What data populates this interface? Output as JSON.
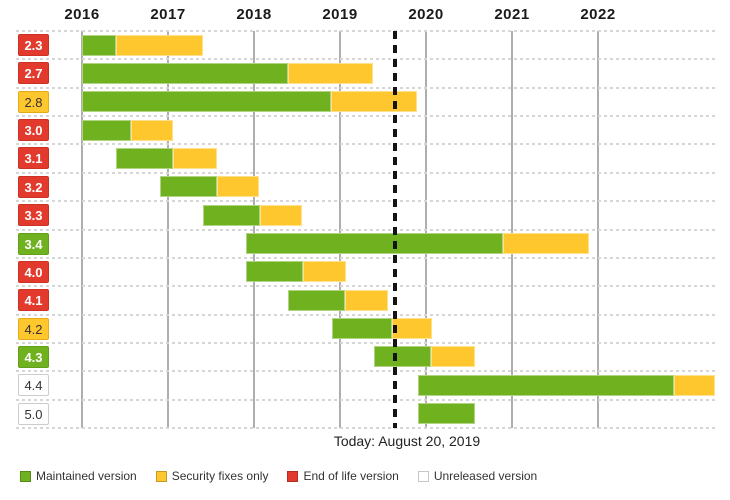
{
  "chart_data": {
    "type": "gantt",
    "description": "Software version support timeline",
    "x_axis": {
      "tick_years": [
        "2016",
        "2017",
        "2018",
        "2019",
        "2020",
        "2021",
        "2022"
      ],
      "range_start": 2015.23,
      "range_end": 2023.37,
      "grid": "solid vertical year lines, dashed horizontal row separators"
    },
    "today": {
      "label": "Today: August 20, 2019",
      "year": 2019.64
    },
    "status_colors": {
      "maintained": "#6fb11e",
      "security": "#ffc72e",
      "eol": "#e23b2e",
      "unreleased": "#ffffff"
    },
    "legend": [
      {
        "key": "maintained",
        "label": "Maintained version"
      },
      {
        "key": "security",
        "label": "Security fixes only"
      },
      {
        "key": "eol",
        "label": "End of life version"
      },
      {
        "key": "unreleased",
        "label": "Unreleased version"
      }
    ],
    "rows": [
      {
        "version": "2.3",
        "status": "eol",
        "maintained": [
          2016.0,
          2016.4
        ],
        "security": [
          2016.4,
          2017.41
        ]
      },
      {
        "version": "2.7",
        "status": "eol",
        "maintained": [
          2016.0,
          2018.4
        ],
        "security": [
          2018.4,
          2019.38
        ]
      },
      {
        "version": "2.8",
        "status": "security",
        "maintained": [
          2016.0,
          2018.9
        ],
        "security": [
          2018.9,
          2019.9
        ]
      },
      {
        "version": "3.0",
        "status": "eol",
        "maintained": [
          2016.0,
          2016.57
        ],
        "security": [
          2016.57,
          2017.06
        ]
      },
      {
        "version": "3.1",
        "status": "eol",
        "maintained": [
          2016.4,
          2017.06
        ],
        "security": [
          2017.06,
          2017.57
        ]
      },
      {
        "version": "3.2",
        "status": "eol",
        "maintained": [
          2016.91,
          2017.57
        ],
        "security": [
          2017.57,
          2018.06
        ]
      },
      {
        "version": "3.3",
        "status": "eol",
        "maintained": [
          2017.41,
          2018.07
        ],
        "security": [
          2018.07,
          2018.56
        ]
      },
      {
        "version": "3.4",
        "status": "maintained",
        "maintained": [
          2017.91,
          2020.9
        ],
        "security": [
          2020.9,
          2021.9
        ]
      },
      {
        "version": "4.0",
        "status": "eol",
        "maintained": [
          2017.91,
          2018.57
        ],
        "security": [
          2018.57,
          2019.07
        ]
      },
      {
        "version": "4.1",
        "status": "eol",
        "maintained": [
          2018.4,
          2019.06
        ],
        "security": [
          2019.06,
          2019.56
        ]
      },
      {
        "version": "4.2",
        "status": "security",
        "maintained": [
          2018.91,
          2019.6
        ],
        "security": [
          2019.6,
          2020.07
        ]
      },
      {
        "version": "4.3",
        "status": "maintained",
        "maintained": [
          2019.4,
          2020.06
        ],
        "security": [
          2020.06,
          2020.57
        ]
      },
      {
        "version": "4.4",
        "status": "unreleased",
        "maintained": [
          2019.91,
          2022.88
        ],
        "security": [
          2022.88,
          2023.36
        ]
      },
      {
        "version": "5.0",
        "status": "unreleased",
        "maintained": [
          2019.91,
          2020.57
        ],
        "security": null
      }
    ]
  }
}
